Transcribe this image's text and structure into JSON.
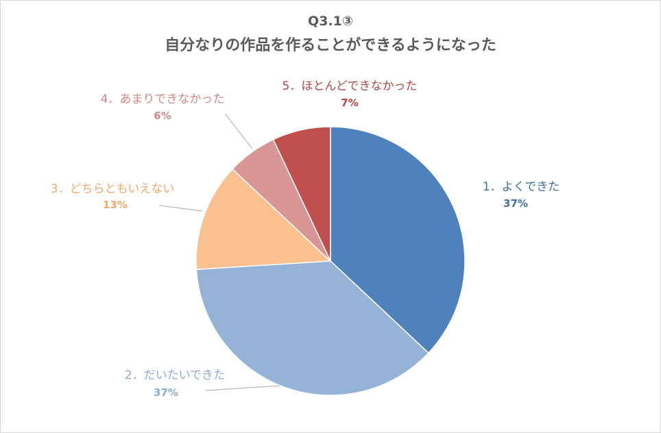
{
  "chart_data": {
    "type": "pie",
    "title": "Q3.1③",
    "subtitle": "自分なりの作品を作ることができるようになった",
    "slices": [
      {
        "label": "1．よくできた",
        "value": 37,
        "value_label": "37%",
        "color": "#4f81bd"
      },
      {
        "label": "2．だいたいできた",
        "value": 37,
        "value_label": "37%",
        "color": "#95b3d7"
      },
      {
        "label": "3．どちらともいえない",
        "value": 13,
        "value_label": "13%",
        "color": "#fac090"
      },
      {
        "label": "4．あまりできなかった",
        "value": 6,
        "value_label": "6%",
        "color": "#d99694"
      },
      {
        "label": "5．ほとんどできなかった",
        "value": 7,
        "value_label": "7%",
        "color": "#c0504d"
      }
    ],
    "label_colors": [
      "#3e6ea5",
      "#8eabd2",
      "#f2a968",
      "#d38886",
      "#b54743"
    ],
    "legend": "none"
  }
}
